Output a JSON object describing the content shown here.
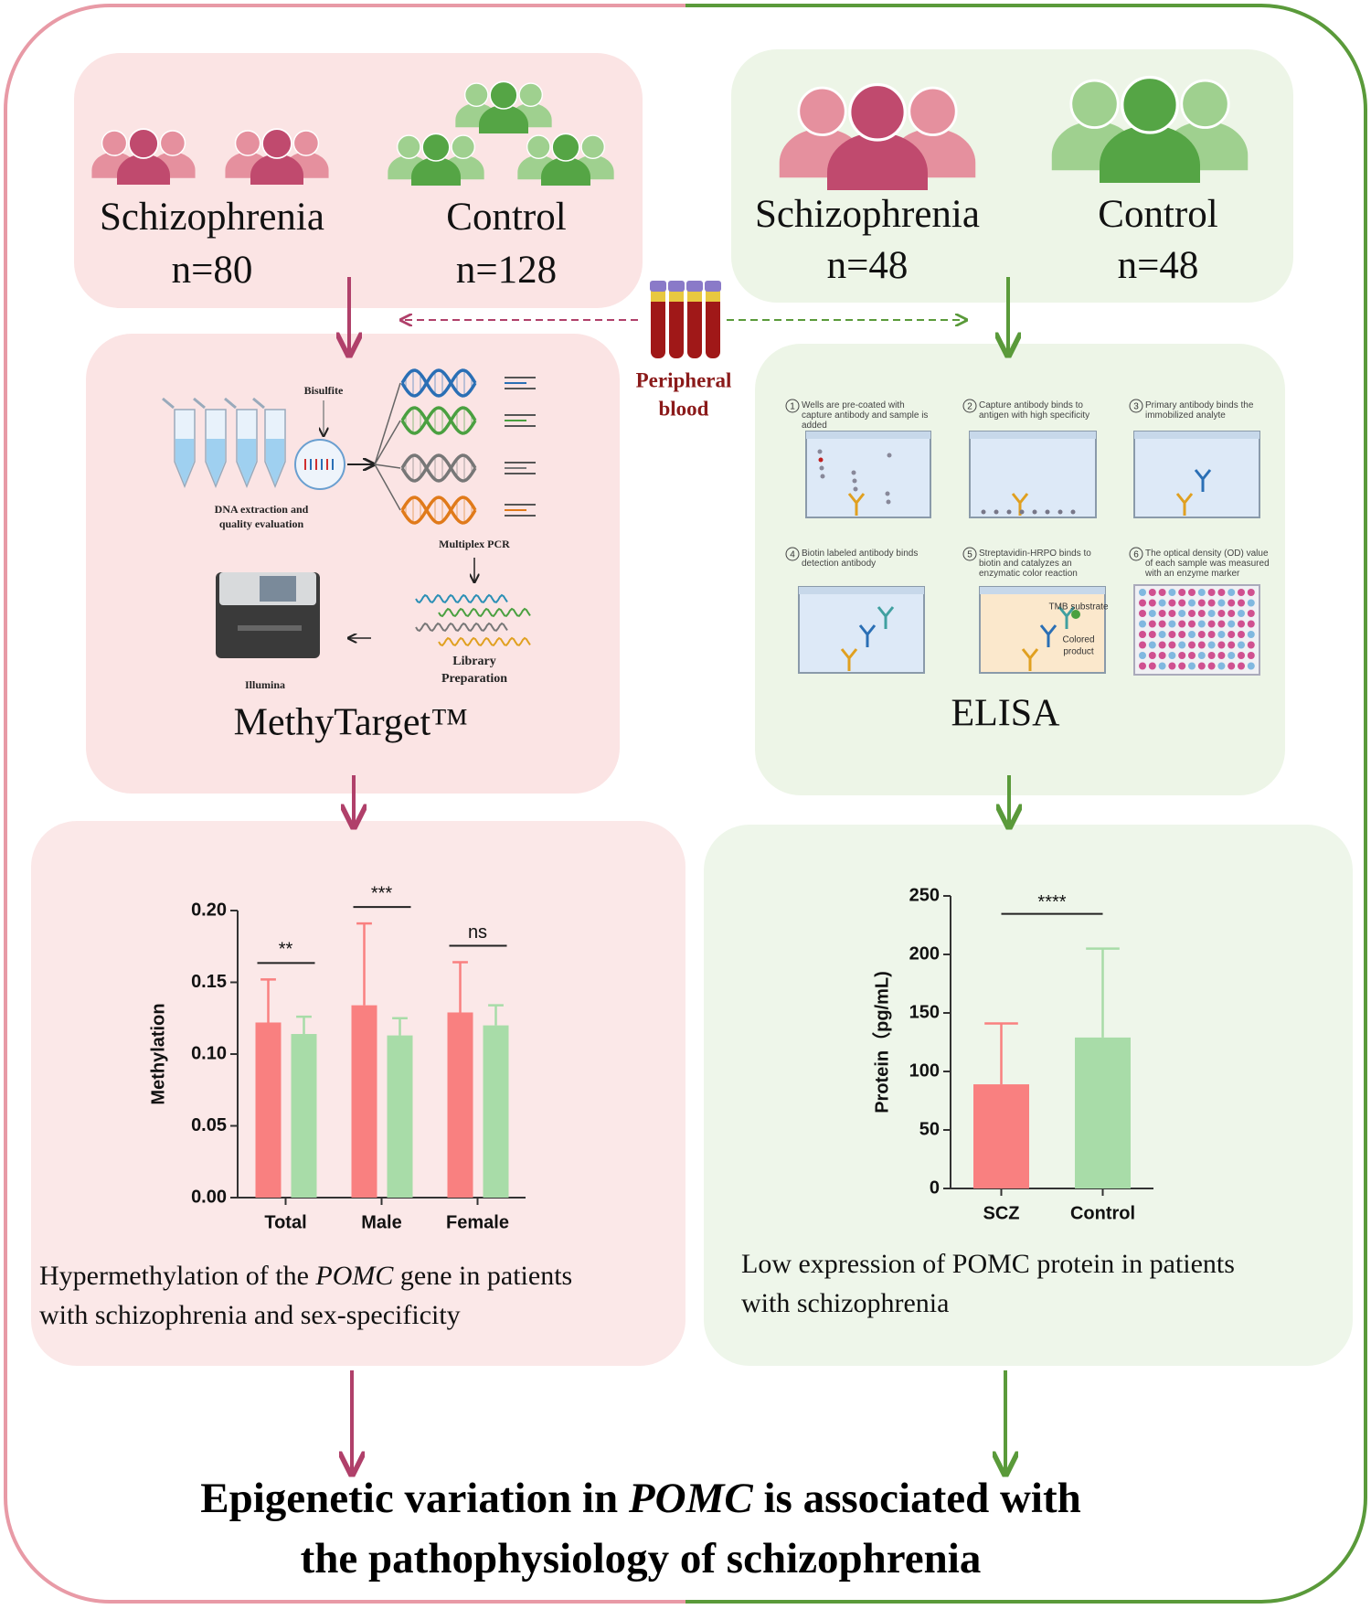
{
  "left_groups": [
    {
      "label": "Schizophrenia",
      "n": "n=80"
    },
    {
      "label": "Control",
      "n": "n=128"
    }
  ],
  "right_groups": [
    {
      "label": "Schizophrenia",
      "n": "n=48"
    },
    {
      "label": "Control",
      "n": "n=48"
    }
  ],
  "sample": [
    "Peripheral",
    "blood"
  ],
  "methytarget": {
    "bisulfite": "Bisulfite",
    "extraction": [
      "DNA extraction and",
      "quality evaluation"
    ],
    "pcr": "Multiplex PCR",
    "library": [
      "Library",
      "Preparation"
    ],
    "sequencer": "Illumina",
    "title": "MethyTarget™"
  },
  "elisa": {
    "steps": [
      {
        "number": "1",
        "text": "Wells are pre-coated with capture antibody and sample is added"
      },
      {
        "number": "2",
        "text": "Capture antibody binds to antigen with high specificity"
      },
      {
        "number": "3",
        "text": "Primary antibody binds the immobilized analyte"
      },
      {
        "number": "4",
        "text": "Biotin labeled antibody binds detection antibody"
      },
      {
        "number": "5",
        "text": "Streptavidin-HRPO binds to biotin and catalyzes an enzymatic color reaction"
      },
      {
        "number": "6",
        "text": "The optical density (OD) value of each sample was measured with an enzyme marker"
      }
    ],
    "tmb": "TMB substrate",
    "product": [
      "Colored",
      "product"
    ],
    "title": "ELISA"
  },
  "captions": {
    "left": [
      [
        "Hypermethylation of the ",
        "POMC",
        " gene in patients"
      ],
      [
        "with schizophrenia and sex-specificity"
      ]
    ],
    "right": [
      "Low expression of POMC protein in patients",
      "with schizophrenia"
    ]
  },
  "conclusion": [
    [
      "Epigenetic variation in ",
      "POMC",
      " is associated with"
    ],
    [
      "the pathophysiology of schizophrenia"
    ]
  ],
  "chart_data": [
    {
      "type": "bar",
      "ylabel": "Methylation",
      "categories": [
        "Total",
        "Male",
        "Female"
      ],
      "series": [
        {
          "color": "#f98080",
          "values": [
            0.122,
            0.134,
            0.129
          ],
          "errors": [
            0.03,
            0.057,
            0.035
          ]
        },
        {
          "color": "#a8dca8",
          "values": [
            0.114,
            0.113,
            0.12
          ],
          "errors": [
            0.012,
            0.012,
            0.014
          ]
        }
      ],
      "ylim": [
        0,
        0.2
      ],
      "yticks": [
        {
          "value": 0,
          "label": "0.00"
        },
        {
          "value": 0.05,
          "label": "0.05"
        },
        {
          "value": 0.1,
          "label": "0.10"
        },
        {
          "value": 0.15,
          "label": "0.15"
        },
        {
          "value": 0.2,
          "label": "0.20"
        }
      ],
      "annotations": [
        "**",
        "***",
        "ns"
      ]
    },
    {
      "type": "bar",
      "ylabel": "Protein（pg/mL)",
      "categories": [
        "SCZ",
        "Control"
      ],
      "values": [
        89,
        129
      ],
      "errors": [
        52,
        76
      ],
      "colors": [
        "#f98080",
        "#a8dca8"
      ],
      "ylim": [
        0,
        250
      ],
      "yticks": [
        0,
        50,
        100,
        150,
        200,
        250
      ],
      "annotation": "****"
    }
  ]
}
